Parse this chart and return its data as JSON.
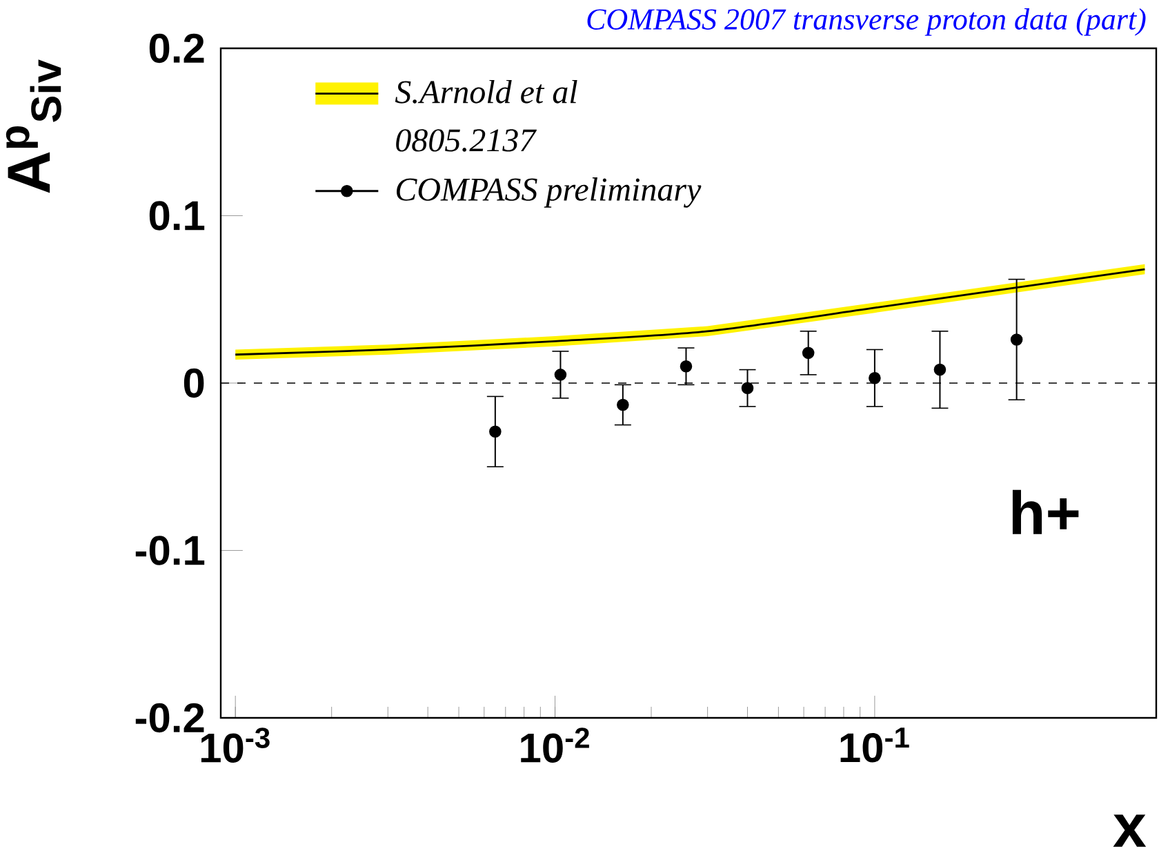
{
  "chart_data": {
    "type": "scatter",
    "title": "COMPASS 2007 transverse proton data  (part)",
    "xlabel": "x",
    "ylabel": "A$^{p}$$_{Siv}$",
    "log": "x",
    "xlim": [
      0.0009,
      0.76
    ],
    "ylim": [
      -0.2,
      0.2
    ],
    "xticks": [
      {
        "value": 0.001,
        "label": "10$^{-3}$"
      },
      {
        "value": 0.01,
        "label": "10$^{-2}$"
      },
      {
        "value": 0.1,
        "label": "10$^{-1}$"
      }
    ],
    "yticks": [
      -0.2,
      -0.1,
      0,
      0.1,
      0.2
    ],
    "legend": "top left",
    "grid": false,
    "series": [
      {
        "name": "S.Arnold et al",
        "type": "line",
        "color": "#000000",
        "line_style": "solid",
        "marker": "none",
        "x": [
          0.001,
          0.003,
          0.01,
          0.03,
          0.1,
          0.3,
          0.7
        ],
        "values": [
          0.017,
          0.02,
          0.025,
          0.031,
          0.045,
          0.058,
          0.068
        ],
        "lower": [
          0.014,
          0.017,
          0.022,
          0.028,
          0.042,
          0.055,
          0.065
        ],
        "upper": [
          0.02,
          0.023,
          0.028,
          0.034,
          0.048,
          0.061,
          0.071
        ]
      },
      {
        "name": "COMPASS preliminary",
        "color": "#000000",
        "marker": "circle",
        "x": [
          0.0065,
          0.0104,
          0.0163,
          0.0257,
          0.04,
          0.062,
          0.1,
          0.16,
          0.278
        ],
        "values": [
          -0.029,
          0.005,
          -0.013,
          0.01,
          -0.003,
          0.018,
          0.003,
          0.008,
          0.026
        ],
        "errors": [
          0.021,
          0.014,
          0.012,
          0.011,
          0.011,
          0.013,
          0.017,
          0.023,
          0.036
        ]
      }
    ],
    "ref_lines": [
      {
        "axis": "y",
        "value": 0,
        "line_style": "dashed",
        "color": "#000000"
      }
    ],
    "annotations": [
      "0805.2137",
      "h+"
    ]
  }
}
